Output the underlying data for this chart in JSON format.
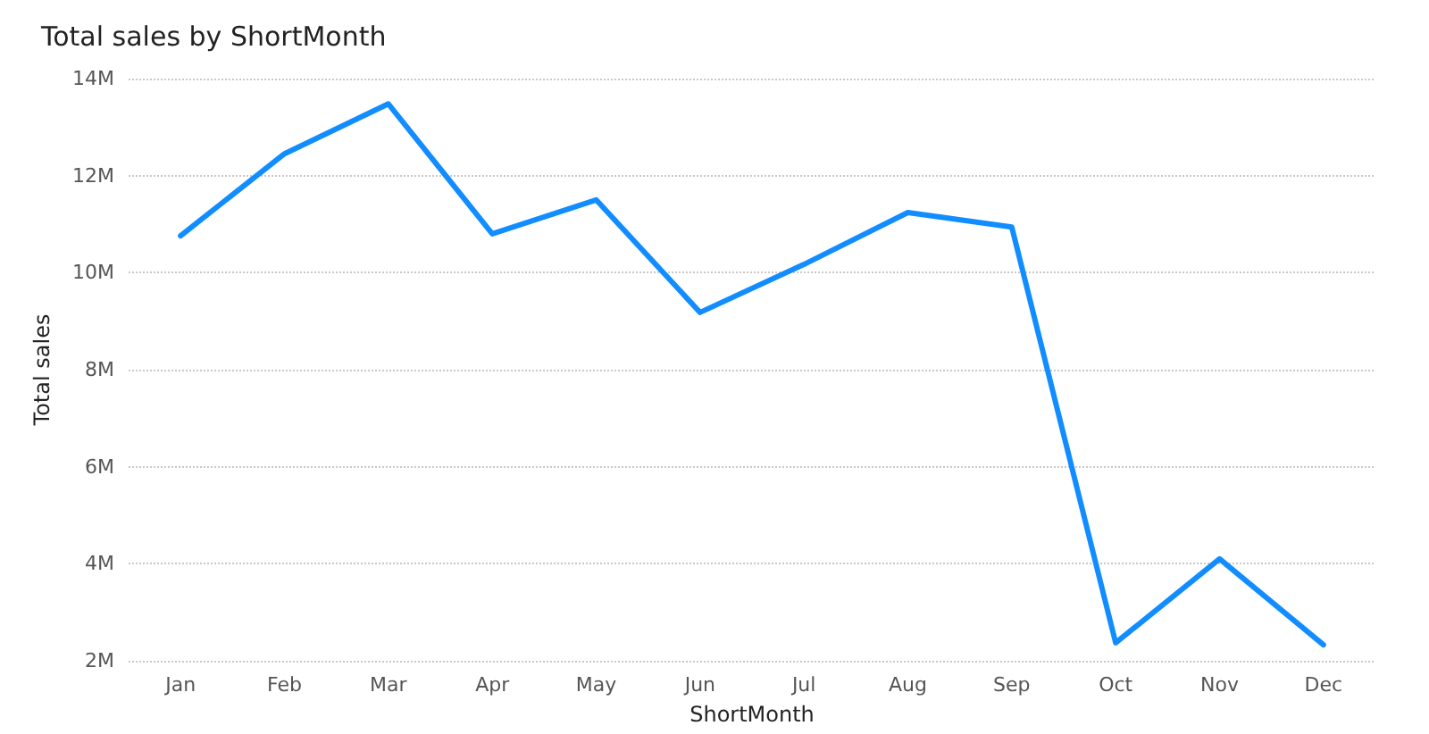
{
  "chart_data": {
    "type": "line",
    "title": "Total sales by ShortMonth",
    "xlabel": "ShortMonth",
    "ylabel": "Total sales",
    "categories": [
      "Jan",
      "Feb",
      "Mar",
      "Apr",
      "May",
      "Jun",
      "Jul",
      "Aug",
      "Sep",
      "Oct",
      "Nov",
      "Dec"
    ],
    "series": [
      {
        "color": "#118dff",
        "values": [
          10.76,
          12.45,
          13.48,
          10.8,
          11.5,
          9.18,
          10.17,
          11.24,
          10.94,
          2.37,
          4.1,
          2.33
        ]
      }
    ],
    "ylim": [
      2,
      14
    ],
    "yticks": [
      {
        "value": 2,
        "label": "2M"
      },
      {
        "value": 4,
        "label": "4M"
      },
      {
        "value": 6,
        "label": "6M"
      },
      {
        "value": 8,
        "label": "8M"
      },
      {
        "value": 10,
        "label": "10M"
      },
      {
        "value": 12,
        "label": "12M"
      },
      {
        "value": 14,
        "label": "14M"
      }
    ],
    "grid": "y",
    "marker": "none",
    "line_style": "solid"
  }
}
